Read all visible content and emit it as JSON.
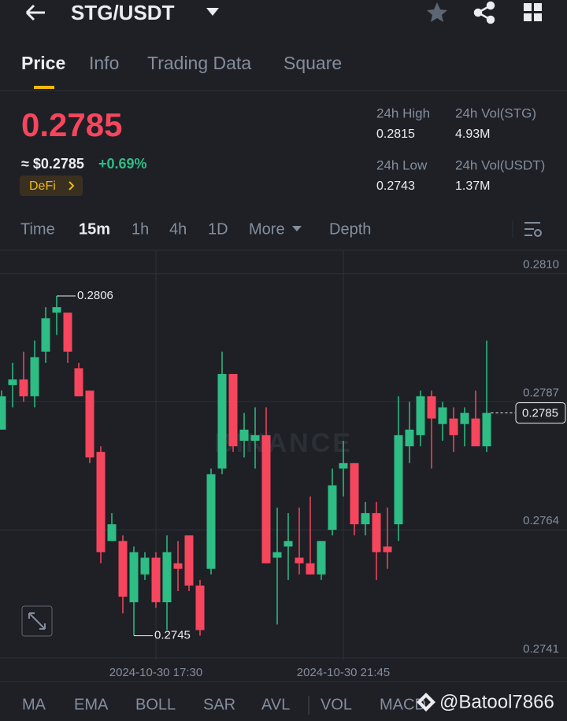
{
  "header": {
    "title": "STG/USDT"
  },
  "tabs": [
    "Price",
    "Info",
    "Trading Data",
    "Square"
  ],
  "ticker": {
    "price": "0.2785",
    "usd_price": "≈ $0.2785",
    "change": "+0.69%",
    "tag": "DeFi",
    "stats": [
      {
        "label": "24h High",
        "value": "0.2815"
      },
      {
        "label": "24h Vol(STG)",
        "value": "4.93M"
      },
      {
        "label": "24h Low",
        "value": "0.2743"
      },
      {
        "label": "24h Vol(USDT)",
        "value": "1.37M"
      }
    ]
  },
  "intervals": [
    "Time",
    "15m",
    "1h",
    "4h",
    "1D",
    "More",
    "Depth"
  ],
  "chart_data": {
    "type": "candlestick",
    "watermark": "BINANCE",
    "categories": [
      null,
      null,
      null,
      null,
      null,
      null,
      null,
      null,
      null,
      null,
      null,
      null,
      null,
      null,
      "2024-10-30 17:30",
      null,
      null,
      null,
      null,
      null,
      null,
      null,
      null,
      null,
      null,
      null,
      null,
      null,
      null,
      null,
      null,
      "2024-10-30 21:45",
      null,
      null,
      null,
      null,
      null,
      null,
      null,
      null,
      null,
      null,
      null,
      null,
      null
    ],
    "open": [
      0.2782,
      0.279,
      0.2791,
      0.2788,
      0.2796,
      0.2803,
      0.2803,
      0.2793,
      0.2789,
      0.2778,
      0.2762,
      0.2762,
      0.2751,
      0.2756,
      0.2759,
      0.2751,
      0.2758,
      0.2763,
      0.2754,
      0.2757,
      0.2775,
      0.2792,
      0.278,
      0.278,
      0.2781,
      0.2759,
      0.2761,
      0.2759,
      0.2758,
      0.2756,
      0.2764,
      0.2775,
      0.2776,
      0.2765,
      0.2767,
      0.2761,
      0.2765,
      0.2779,
      0.2781,
      0.2788,
      0.2783,
      0.2784,
      0.2783,
      0.2784,
      0.2779
    ],
    "high": [
      0.2789,
      0.2794,
      0.2796,
      0.2798,
      0.2804,
      0.2806,
      0.2803,
      0.2794,
      0.2789,
      0.2779,
      0.2767,
      0.2763,
      0.2761,
      0.276,
      0.276,
      0.2763,
      0.2762,
      0.2763,
      0.2755,
      0.2775,
      0.2796,
      0.2792,
      0.2785,
      0.2786,
      0.2786,
      0.2768,
      0.2767,
      0.2768,
      0.277,
      0.2762,
      0.2775,
      0.278,
      0.2776,
      0.2769,
      0.2769,
      0.2768,
      0.2788,
      0.2787,
      0.2789,
      0.2789,
      0.2787,
      0.2786,
      0.2786,
      0.2789,
      0.2798
    ],
    "low": [
      0.2782,
      0.2786,
      0.2787,
      0.2786,
      0.2794,
      0.2799,
      0.2794,
      0.2788,
      0.2776,
      0.2758,
      0.2762,
      0.2749,
      0.2745,
      0.2755,
      0.275,
      0.2746,
      0.2753,
      0.2753,
      0.2745,
      0.2756,
      0.2774,
      0.2778,
      0.2777,
      0.2775,
      0.2758,
      0.2747,
      0.2755,
      0.2756,
      0.2756,
      0.2755,
      0.2763,
      0.277,
      0.2763,
      0.2763,
      0.2755,
      0.2757,
      0.2762,
      0.2776,
      0.2779,
      0.2775,
      0.278,
      0.2778,
      0.2779,
      0.2779,
      0.2778
    ],
    "close": [
      0.2788,
      0.2791,
      0.2788,
      0.2795,
      0.2802,
      0.2804,
      0.2796,
      0.2788,
      0.2777,
      0.276,
      0.2765,
      0.2752,
      0.276,
      0.2759,
      0.2751,
      0.276,
      0.2757,
      0.2754,
      0.2746,
      0.2774,
      0.2792,
      0.2779,
      0.2782,
      0.2781,
      0.2758,
      0.276,
      0.2762,
      0.2758,
      0.2756,
      0.2762,
      0.2772,
      0.2776,
      0.2765,
      0.2767,
      0.276,
      0.276,
      0.2781,
      0.2782,
      0.2788,
      0.2784,
      0.2786,
      0.2781,
      0.2785,
      0.2779,
      0.2785
    ],
    "ylim": [
      0.27407,
      0.28142
    ],
    "yticks": [
      {
        "value": 0.281,
        "label": "0.2810"
      },
      0.2787,
      0.2764,
      0.2741
    ],
    "high_label": 0.2806,
    "low_label": 0.2745,
    "last_price": 0.2785,
    "up_color": "#2ebd85",
    "down_color": "#f6465d"
  },
  "indicators": [
    "MA",
    "EMA",
    "BOLL",
    "SAR",
    "AVL",
    "VOL",
    "MACD"
  ],
  "watermark": "@Batool7866"
}
